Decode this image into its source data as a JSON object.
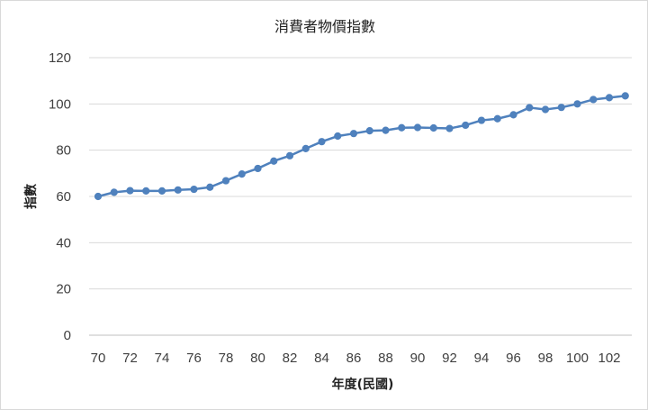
{
  "chart_data": {
    "type": "line",
    "title": "消費者物價指數",
    "xlabel": "年度(民國)",
    "ylabel": "指數",
    "ylim": [
      0,
      120
    ],
    "yticks": [
      0,
      20,
      40,
      60,
      80,
      100,
      120
    ],
    "xlim": [
      70,
      103
    ],
    "xticks": [
      70,
      72,
      74,
      76,
      78,
      80,
      82,
      84,
      86,
      88,
      90,
      92,
      94,
      96,
      98,
      100,
      102
    ],
    "grid": "horizontal",
    "legend": "none",
    "series": [
      {
        "color": "#4f81bd",
        "x": [
          70,
          71,
          72,
          73,
          74,
          75,
          76,
          77,
          78,
          79,
          80,
          81,
          82,
          83,
          84,
          85,
          86,
          87,
          88,
          89,
          90,
          91,
          92,
          93,
          94,
          95,
          96,
          97,
          98,
          99,
          100,
          101,
          102,
          103
        ],
        "values": [
          60,
          61.8,
          62.5,
          62.4,
          62.4,
          62.8,
          63.1,
          64,
          66.8,
          69.7,
          72.1,
          75.3,
          77.6,
          80.7,
          83.7,
          86.1,
          87.2,
          88.4,
          88.6,
          89.7,
          89.8,
          89.6,
          89.4,
          90.8,
          92.9,
          93.6,
          95.3,
          98.4,
          97.6,
          98.5,
          100,
          101.9,
          102.7,
          103.5
        ]
      }
    ]
  }
}
